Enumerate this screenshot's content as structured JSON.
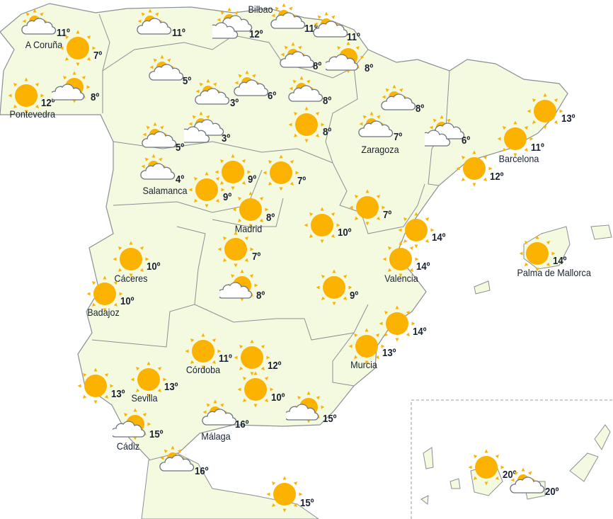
{
  "map": {
    "colors": {
      "land": "#f4fadf",
      "border": "#8a8f96",
      "sun": "#fbb200",
      "cloud_fill": "#ffffff",
      "cloud_stroke": "#6c7480",
      "text": "#1a2233"
    },
    "stations": [
      {
        "city": "A Coruña",
        "temp": "11º",
        "icon": "sun-cloud"
      },
      {
        "city": "",
        "temp": "7º",
        "icon": "sun"
      },
      {
        "city": "Pontevedra",
        "temp": "12º",
        "icon": "sun"
      },
      {
        "city": "",
        "temp": "8º",
        "icon": "sun-small-cloud"
      },
      {
        "city": "",
        "temp": "11º",
        "icon": "sun-cloud"
      },
      {
        "city": "",
        "temp": "12º",
        "icon": "sun-two-clouds"
      },
      {
        "city": "Bilbao",
        "temp": "11º",
        "icon": "sun-cloud"
      },
      {
        "city": "",
        "temp": "11º",
        "icon": "sun-cloud"
      },
      {
        "city": "",
        "temp": "8º",
        "icon": "sun-cloud"
      },
      {
        "city": "",
        "temp": "8º",
        "icon": "sun-small-cloud"
      },
      {
        "city": "",
        "temp": "5º",
        "icon": "sun-cloud"
      },
      {
        "city": "",
        "temp": "3º",
        "icon": "sun-cloud"
      },
      {
        "city": "",
        "temp": "6º",
        "icon": "sun-cloud"
      },
      {
        "city": "",
        "temp": "8º",
        "icon": "sun-cloud"
      },
      {
        "city": "",
        "temp": "8º",
        "icon": "sun"
      },
      {
        "city": "",
        "temp": "8º",
        "icon": "sun-cloud"
      },
      {
        "city": "",
        "temp": "5º",
        "icon": "sun-cloud"
      },
      {
        "city": "",
        "temp": "3º",
        "icon": "sun-two-clouds"
      },
      {
        "city": "Zaragoza",
        "temp": "7º",
        "icon": "sun-cloud"
      },
      {
        "city": "",
        "temp": "6º",
        "icon": "sun-two-clouds"
      },
      {
        "city": "",
        "temp": "13º",
        "icon": "sun"
      },
      {
        "city": "Barcelona",
        "temp": "11º",
        "icon": "sun"
      },
      {
        "city": "",
        "temp": "12º",
        "icon": "sun"
      },
      {
        "city": "Salamanca",
        "temp": "4º",
        "icon": "sun-cloud"
      },
      {
        "city": "",
        "temp": "9º",
        "icon": "sun"
      },
      {
        "city": "",
        "temp": "9º",
        "icon": "sun"
      },
      {
        "city": "",
        "temp": "7º",
        "icon": "sun"
      },
      {
        "city": "Madrid",
        "temp": "8º",
        "icon": "sun"
      },
      {
        "city": "",
        "temp": "7º",
        "icon": "sun"
      },
      {
        "city": "",
        "temp": "10º",
        "icon": "sun"
      },
      {
        "city": "",
        "temp": "14º",
        "icon": "sun"
      },
      {
        "city": "Palma de Mallorca",
        "temp": "14º",
        "icon": "sun"
      },
      {
        "city": "Valencia",
        "temp": "14º",
        "icon": "sun"
      },
      {
        "city": "Cáceres",
        "temp": "10º",
        "icon": "sun"
      },
      {
        "city": "",
        "temp": "7º",
        "icon": "sun"
      },
      {
        "city": "Badajoz",
        "temp": "10º",
        "icon": "sun"
      },
      {
        "city": "",
        "temp": "8º",
        "icon": "sun-small-cloud"
      },
      {
        "city": "",
        "temp": "9º",
        "icon": "sun"
      },
      {
        "city": "",
        "temp": "14º",
        "icon": "sun"
      },
      {
        "city": "Murcia",
        "temp": "13º",
        "icon": "sun"
      },
      {
        "city": "Córdoba",
        "temp": "11º",
        "icon": "sun"
      },
      {
        "city": "",
        "temp": "12º",
        "icon": "sun"
      },
      {
        "city": "Sevilla",
        "temp": "13º",
        "icon": "sun"
      },
      {
        "city": "",
        "temp": "13º",
        "icon": "sun"
      },
      {
        "city": "",
        "temp": "10º",
        "icon": "sun"
      },
      {
        "city": "",
        "temp": "15º",
        "icon": "sun-small-cloud"
      },
      {
        "city": "Málaga",
        "temp": "16º",
        "icon": "sun-cloud"
      },
      {
        "city": "Cádiz",
        "temp": "15º",
        "icon": "sun-small-cloud"
      },
      {
        "city": "",
        "temp": "16º",
        "icon": "sun-cloud"
      },
      {
        "city": "",
        "temp": "15º",
        "icon": "sun"
      },
      {
        "city": "",
        "temp": "20º",
        "icon": "sun"
      },
      {
        "city": "",
        "temp": "20º",
        "icon": "sun-cloud"
      }
    ]
  }
}
